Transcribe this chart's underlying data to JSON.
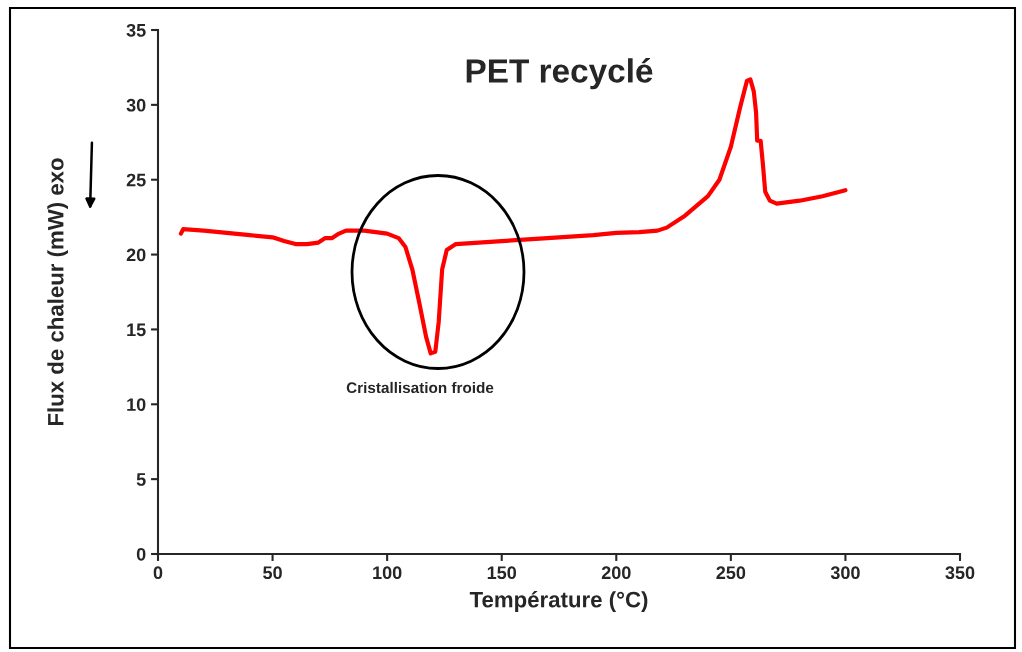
{
  "chart_data": {
    "type": "line",
    "title": "PET recyclé",
    "xlabel": "Température (°C)",
    "ylabel": "Flux de chaleur (mW) exo",
    "xlim": [
      0,
      350
    ],
    "xticks": [
      0,
      50,
      100,
      150,
      200,
      250,
      300,
      350
    ],
    "ylim": [
      0,
      35
    ],
    "yticks": [
      0,
      5,
      10,
      15,
      20,
      25,
      30,
      35
    ],
    "grid": false,
    "legend": false,
    "marker": "none",
    "line_style": "solid",
    "series": [
      {
        "color": "#ff0000",
        "x": [
          10,
          11,
          20,
          30,
          40,
          50,
          55,
          60,
          65,
          70,
          73,
          76,
          79,
          82,
          90,
          100,
          105,
          108,
          111,
          114,
          117,
          119,
          121,
          122.5,
          124,
          126,
          130,
          140,
          150,
          170,
          190,
          200,
          210,
          218,
          222,
          230,
          240,
          245,
          250,
          254,
          257,
          258.5,
          260,
          261,
          261.5,
          263,
          264,
          265,
          267,
          270,
          280,
          290,
          300
        ],
        "values": [
          21.4,
          21.7,
          21.6,
          21.45,
          21.3,
          21.15,
          20.9,
          20.7,
          20.7,
          20.8,
          21.1,
          21.1,
          21.4,
          21.6,
          21.6,
          21.4,
          21.1,
          20.5,
          19.0,
          16.8,
          14.5,
          13.4,
          13.5,
          15.5,
          19.0,
          20.3,
          20.7,
          20.8,
          20.9,
          21.1,
          21.3,
          21.45,
          21.5,
          21.6,
          21.8,
          22.6,
          23.9,
          25.0,
          27.2,
          29.8,
          31.6,
          31.7,
          30.9,
          29.5,
          27.6,
          27.6,
          26.0,
          24.2,
          23.6,
          23.4,
          23.6,
          23.9,
          24.3
        ]
      }
    ],
    "annotations": [
      "Cristallisation froide"
    ]
  }
}
